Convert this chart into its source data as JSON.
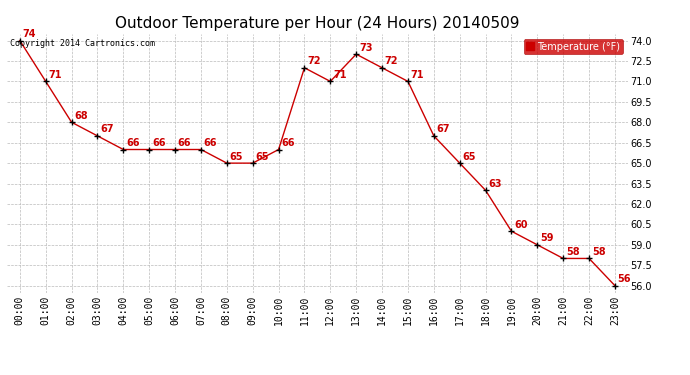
{
  "title": "Outdoor Temperature per Hour (24 Hours) 20140509",
  "copyright": "Copyright 2014 Cartronics.com",
  "legend_label": "Temperature (°F)",
  "hours": [
    0,
    1,
    2,
    3,
    4,
    5,
    6,
    7,
    8,
    9,
    10,
    11,
    12,
    13,
    14,
    15,
    16,
    17,
    18,
    19,
    20,
    21,
    22,
    23
  ],
  "hour_labels": [
    "00:00",
    "01:00",
    "02:00",
    "03:00",
    "04:00",
    "05:00",
    "06:00",
    "07:00",
    "08:00",
    "09:00",
    "10:00",
    "11:00",
    "12:00",
    "13:00",
    "14:00",
    "15:00",
    "16:00",
    "17:00",
    "18:00",
    "19:00",
    "20:00",
    "21:00",
    "22:00",
    "23:00"
  ],
  "temperatures": [
    74,
    71,
    68,
    67,
    66,
    66,
    66,
    66,
    65,
    65,
    66,
    72,
    71,
    73,
    72,
    71,
    67,
    65,
    63,
    60,
    59,
    58,
    58,
    56
  ],
  "ylim": [
    55.5,
    74.5
  ],
  "yticks": [
    56.0,
    57.5,
    59.0,
    60.5,
    62.0,
    63.5,
    65.0,
    66.5,
    68.0,
    69.5,
    71.0,
    72.5,
    74.0
  ],
  "line_color": "#cc0000",
  "marker_color": "#000000",
  "bg_color": "#ffffff",
  "grid_color": "#bbbbbb",
  "label_color": "#cc0000",
  "title_color": "#000000",
  "title_fontsize": 11,
  "tick_fontsize": 7,
  "label_fontsize": 7,
  "copyright_fontsize": 6,
  "legend_bg": "#cc0000",
  "legend_fg": "#ffffff"
}
